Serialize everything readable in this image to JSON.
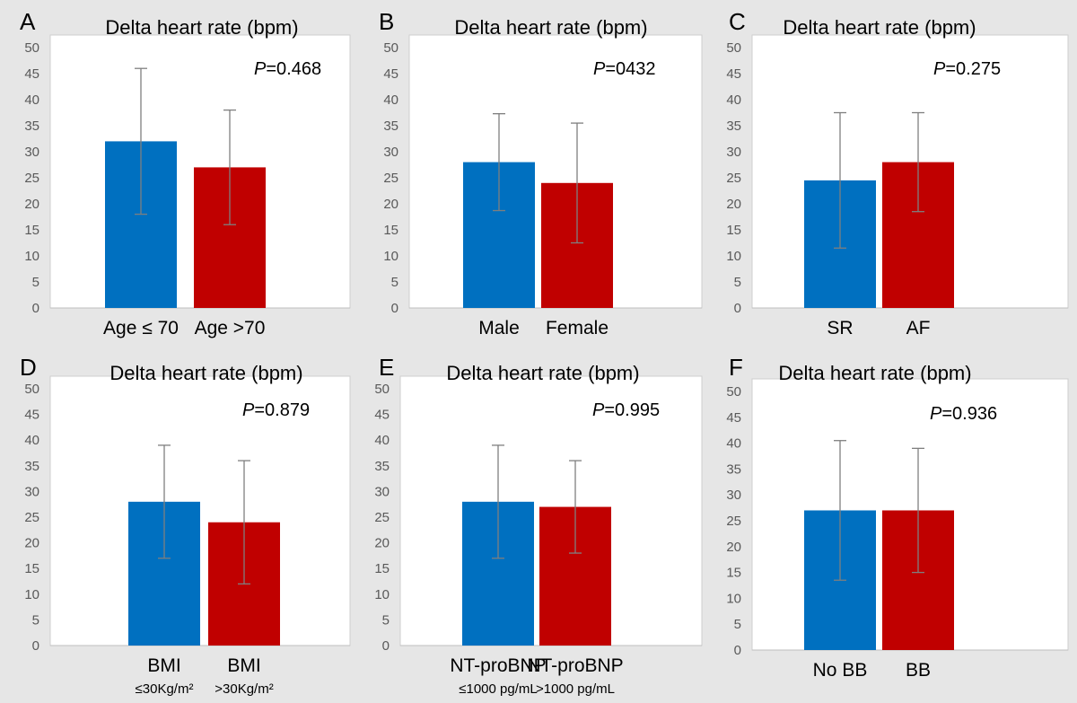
{
  "colors": {
    "group1": "#0070C0",
    "group2": "#C00000",
    "errorbar": "#7f7f7f",
    "grid": "#d9d9d9"
  },
  "chart_data": [
    {
      "panel_letter": "A",
      "type": "bar",
      "title": "Delta heart rate (bpm)",
      "p_label": "P",
      "p_value": "=0.468",
      "categories": [
        "Age ≤ 70",
        "Age >70"
      ],
      "category_sublabels": [
        "",
        ""
      ],
      "values": [
        32,
        27
      ],
      "errors": [
        14,
        11
      ],
      "ylim": [
        0,
        50
      ],
      "yticks": [
        "0",
        "5",
        "10",
        "15",
        "20",
        "25",
        "30",
        "35",
        "40",
        "45",
        "50"
      ],
      "grid": false
    },
    {
      "panel_letter": "B",
      "type": "bar",
      "title": "Delta heart rate (bpm)",
      "p_label": "P",
      "p_value": "=0432",
      "categories": [
        "Male",
        "Female"
      ],
      "category_sublabels": [
        "",
        ""
      ],
      "values": [
        28,
        24
      ],
      "errors": [
        9.3,
        11.5
      ],
      "ylim": [
        0,
        50
      ],
      "yticks": [
        "0",
        "5",
        "10",
        "15",
        "20",
        "25",
        "30",
        "35",
        "40",
        "45",
        "50"
      ],
      "grid": false
    },
    {
      "panel_letter": "C",
      "type": "bar",
      "title": "Delta heart rate (bpm)",
      "p_label": "P",
      "p_value": "=0.275",
      "categories": [
        "SR",
        "AF"
      ],
      "category_sublabels": [
        "",
        ""
      ],
      "values": [
        24.5,
        28
      ],
      "errors": [
        13,
        9.5
      ],
      "ylim": [
        0,
        50
      ],
      "yticks": [
        "0",
        "5",
        "10",
        "15",
        "20",
        "25",
        "30",
        "35",
        "40",
        "45",
        "50"
      ],
      "grid": false
    },
    {
      "panel_letter": "D",
      "type": "bar",
      "title": "Delta heart rate (bpm)",
      "p_label": "P",
      "p_value": "=0.879",
      "categories": [
        "BMI",
        "BMI"
      ],
      "category_sublabels": [
        "≤30Kg/m²",
        ">30Kg/m²"
      ],
      "values": [
        28,
        24
      ],
      "errors": [
        11,
        12
      ],
      "ylim": [
        0,
        50
      ],
      "yticks": [
        "0",
        "5",
        "10",
        "15",
        "20",
        "25",
        "30",
        "35",
        "40",
        "45",
        "50"
      ],
      "grid": false
    },
    {
      "panel_letter": "E",
      "type": "bar",
      "title": "Delta heart rate (bpm)",
      "p_label": "P",
      "p_value": "=0.995",
      "categories": [
        "NT-proBNP",
        "NT-proBNP"
      ],
      "category_sublabels": [
        "≤1000 pg/mL",
        ">1000 pg/mL"
      ],
      "values": [
        28,
        27
      ],
      "errors": [
        11,
        9
      ],
      "ylim": [
        0,
        50
      ],
      "yticks": [
        "0",
        "5",
        "10",
        "15",
        "20",
        "25",
        "30",
        "35",
        "40",
        "45",
        "50"
      ],
      "grid": false
    },
    {
      "panel_letter": "F",
      "type": "bar",
      "title": "Delta heart rate (bpm)",
      "p_label": "P",
      "p_value": "=0.936",
      "categories": [
        "No BB",
        "BB"
      ],
      "category_sublabels": [
        "",
        ""
      ],
      "values": [
        27,
        27
      ],
      "errors": [
        13.5,
        12
      ],
      "ylim": [
        0,
        50
      ],
      "yticks": [
        "0",
        "5",
        "10",
        "15",
        "20",
        "25",
        "30",
        "35",
        "40",
        "45",
        "50"
      ],
      "grid": false
    }
  ]
}
